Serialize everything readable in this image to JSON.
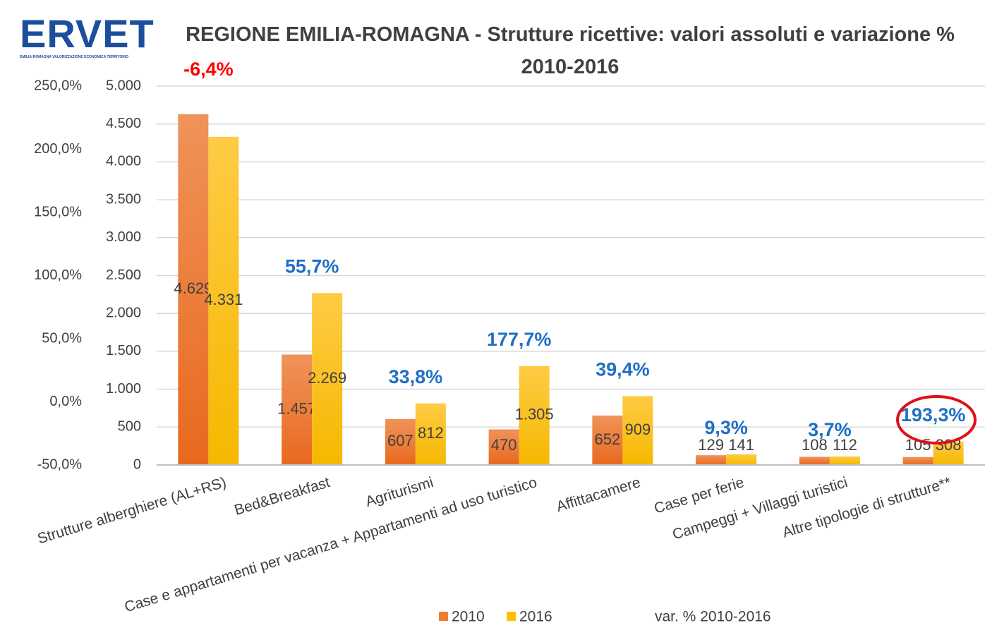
{
  "logo": {
    "name": "ERVET",
    "tagline": "EMILIA-ROMAGNA VALORIZZAZIONE ECONOMICA TERRITORIO"
  },
  "chart_data": {
    "type": "bar",
    "title": "REGIONE EMILIA-ROMAGNA - Strutture ricettive: valori assoluti  e variazione % 2010-2016",
    "categories": [
      "Strutture alberghiere (AL+RS)",
      "Bed&Breakfast",
      "Agriturismi",
      "Case e appartamenti per vacanza + Appartamenti ad uso turistico",
      "Affittacamere",
      "Case per ferie",
      "Campeggi + Villaggi turistici",
      "Altre tipologie di strutture**"
    ],
    "series": [
      {
        "name": "2010",
        "color": "#ed7d31",
        "values": [
          4629,
          1457,
          607,
          470,
          652,
          129,
          108,
          105
        ],
        "value_labels": [
          "4.629",
          "1.457",
          "607",
          "470",
          "652",
          "129",
          "108",
          "105"
        ]
      },
      {
        "name": "2016",
        "color": "#ffc000",
        "values": [
          4331,
          2269,
          812,
          1305,
          909,
          141,
          112,
          308
        ],
        "value_labels": [
          "4.331",
          "2.269",
          "812",
          "1.305",
          "909",
          "141",
          "112",
          "308"
        ]
      },
      {
        "name": "var. % 2010-2016",
        "axis": "y2",
        "values": [
          -6.4,
          55.7,
          33.8,
          177.7,
          39.4,
          9.3,
          3.7,
          193.3
        ],
        "value_labels": [
          "-6,4%",
          "55,7%",
          "33,8%",
          "177,7%",
          "39,4%",
          "9,3%",
          "3,7%",
          "193,3%"
        ],
        "label_colors": [
          "#ff0000",
          "#1f6fc5",
          "#1f6fc5",
          "#1f6fc5",
          "#1f6fc5",
          "#1f6fc5",
          "#1f6fc5",
          "#1f6fc5"
        ]
      }
    ],
    "ylim": [
      0,
      5000
    ],
    "yticks": [
      0,
      500,
      {
        "value": 1000,
        "label": "1.000"
      },
      {
        "value": 1500,
        "label": "1.500"
      },
      {
        "value": 2000,
        "label": "2.000"
      },
      {
        "value": 2500,
        "label": "2.500"
      },
      {
        "value": 3000,
        "label": "3.000"
      },
      {
        "value": 3500,
        "label": "3.500"
      },
      {
        "value": 4000,
        "label": "4.000"
      },
      {
        "value": 4500,
        "label": "4.500"
      },
      {
        "value": 5000,
        "label": "5.000"
      }
    ],
    "y2lim": [
      -50,
      250
    ],
    "y2ticks": [
      {
        "value": -50,
        "label": "-50,0%"
      },
      {
        "value": 0,
        "label": "0,0%"
      },
      {
        "value": 50,
        "label": "50,0%"
      },
      {
        "value": 100,
        "label": "100,0%"
      },
      {
        "value": 150,
        "label": "150,0%"
      },
      {
        "value": 200,
        "label": "200,0%"
      },
      {
        "value": 250,
        "label": "250,0%"
      }
    ],
    "grid": true
  }
}
